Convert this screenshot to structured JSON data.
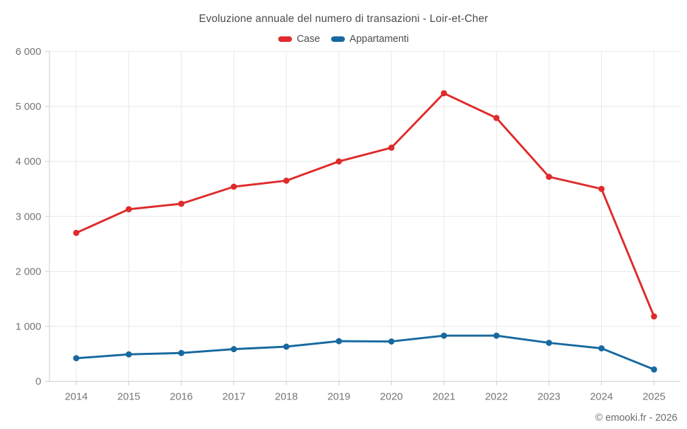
{
  "title": "Evoluzione annuale del numero di transazioni - Loir-et-Cher",
  "legend": {
    "items": [
      {
        "label": "Case",
        "color": "#df2b2b"
      },
      {
        "label": "Appartamenti",
        "color": "#17699f"
      }
    ]
  },
  "footer": {
    "credit": "© emooki.fr - 2026"
  },
  "colors": {
    "grid": "#e8e8e8",
    "axis": "#cccccc",
    "tick_label": "#757575"
  },
  "chart_data": {
    "type": "line",
    "title": "Evoluzione annuale del numero di transazioni - Loir-et-Cher",
    "x": [
      2014,
      2015,
      2016,
      2017,
      2018,
      2019,
      2020,
      2021,
      2022,
      2023,
      2024,
      2025
    ],
    "series": [
      {
        "name": "Case",
        "color": "#df2b2b",
        "values": [
          2700,
          3130,
          3230,
          3540,
          3650,
          4000,
          4250,
          5240,
          4790,
          3720,
          3500,
          1180
        ]
      },
      {
        "name": "Appartamenti",
        "color": "#17699f",
        "values": [
          420,
          490,
          515,
          585,
          630,
          730,
          725,
          830,
          830,
          700,
          600,
          215
        ]
      }
    ],
    "xlabel": "",
    "ylabel": "",
    "ylim": [
      0,
      6000
    ],
    "ytick_step": 1000,
    "ytick_labels": [
      "0",
      "1 000",
      "2 000",
      "3 000",
      "4 000",
      "5 000",
      "6 000"
    ],
    "grid": true,
    "legend_position": "top"
  }
}
